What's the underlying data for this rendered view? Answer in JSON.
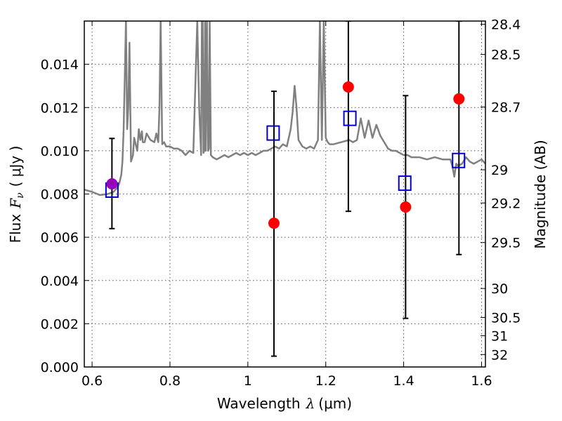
{
  "chart_data": {
    "type": "scatter",
    "title": "",
    "xlabel": {
      "text": "Wavelength",
      "symbol": "λ",
      "unit": "(μm)"
    },
    "ylabel": {
      "text": "Flux",
      "symbol": "F",
      "subscript": "ν",
      "unit": "( μJy )"
    },
    "y2label": "Magnitude (AB)",
    "xlim": [
      0.58,
      1.61
    ],
    "ylim": [
      0.0,
      0.016
    ],
    "grid": true,
    "legend": "none",
    "xticks": [
      0.6,
      0.8,
      1.0,
      1.2,
      1.4,
      1.6
    ],
    "xtick_labels": [
      "0.6",
      "0.8",
      "1",
      "1.2",
      "1.4",
      "1.6"
    ],
    "yticks": [
      0.0,
      0.002,
      0.004,
      0.006,
      0.008,
      0.01,
      0.012,
      0.014
    ],
    "ytick_labels": [
      "0.000",
      "0.002",
      "0.004",
      "0.006",
      "0.008",
      "0.010",
      "0.012",
      "0.014"
    ],
    "magnitude_ticks": [
      {
        "mag": 28.4,
        "label": "28.4"
      },
      {
        "mag": 28.5,
        "label": "28.5"
      },
      {
        "mag": 28.7,
        "label": "28.7"
      },
      {
        "mag": 29.0,
        "label": "29"
      },
      {
        "mag": 29.2,
        "label": "29.2"
      },
      {
        "mag": 29.5,
        "label": "29.5"
      },
      {
        "mag": 30.0,
        "label": "30"
      },
      {
        "mag": 30.5,
        "label": "30.5"
      },
      {
        "mag": 31.0,
        "label": "31"
      },
      {
        "mag": 32.0,
        "label": "32"
      }
    ],
    "colors": {
      "observed": "#ff0000",
      "model": "#0000cc",
      "detected": "#9900bb",
      "errorbar": "#000000",
      "spectrum": "#808080",
      "grid": "#555555"
    },
    "observed_points": [
      {
        "x": 1.067,
        "y": 0.00665,
        "yerr_low": 0.00615,
        "yerr_high": 0.0061
      },
      {
        "x": 1.258,
        "y": 0.01295,
        "yerr_low": 0.00575,
        "yerr_high": 0.00305
      },
      {
        "x": 1.405,
        "y": 0.0074,
        "yerr_low": 0.00515,
        "yerr_high": 0.00515
      },
      {
        "x": 1.542,
        "y": 0.0124,
        "yerr_low": 0.0072,
        "yerr_high": 0.0036
      }
    ],
    "detected_points": [
      {
        "x": 0.651,
        "y": 0.00847,
        "yerr_low": 0.00207,
        "yerr_high": 0.0021
      }
    ],
    "model_points": [
      {
        "x": 0.651,
        "y": 0.00818
      },
      {
        "x": 1.065,
        "y": 0.01082
      },
      {
        "x": 1.262,
        "y": 0.0115
      },
      {
        "x": 1.403,
        "y": 0.0085
      },
      {
        "x": 1.541,
        "y": 0.00955
      }
    ],
    "spectrum": {
      "x": [
        0.58,
        0.6,
        0.62,
        0.64,
        0.655,
        0.665,
        0.67,
        0.675,
        0.678,
        0.681,
        0.684,
        0.687,
        0.69,
        0.693,
        0.696,
        0.7,
        0.705,
        0.708,
        0.712,
        0.716,
        0.72,
        0.724,
        0.728,
        0.73,
        0.735,
        0.74,
        0.75,
        0.76,
        0.765,
        0.77,
        0.773,
        0.776,
        0.78,
        0.785,
        0.79,
        0.8,
        0.81,
        0.82,
        0.83,
        0.84,
        0.85,
        0.86,
        0.87,
        0.875,
        0.88,
        0.882,
        0.884,
        0.886,
        0.888,
        0.89,
        0.892,
        0.895,
        0.898,
        0.9,
        0.902,
        0.905,
        0.91,
        0.92,
        0.93,
        0.94,
        0.95,
        0.96,
        0.97,
        0.98,
        0.99,
        1.0,
        1.01,
        1.02,
        1.03,
        1.04,
        1.05,
        1.06,
        1.07,
        1.08,
        1.09,
        1.1,
        1.11,
        1.115,
        1.12,
        1.125,
        1.13,
        1.14,
        1.15,
        1.16,
        1.17,
        1.18,
        1.185,
        1.19,
        1.195,
        1.2,
        1.205,
        1.21,
        1.22,
        1.24,
        1.26,
        1.27,
        1.28,
        1.29,
        1.3,
        1.31,
        1.32,
        1.33,
        1.34,
        1.35,
        1.36,
        1.37,
        1.38,
        1.39,
        1.4,
        1.41,
        1.42,
        1.44,
        1.46,
        1.48,
        1.5,
        1.52,
        1.525,
        1.53,
        1.535,
        1.54,
        1.55,
        1.56,
        1.57,
        1.58,
        1.59,
        1.6,
        1.61
      ],
      "y": [
        0.0082,
        0.0081,
        0.00795,
        0.008,
        0.0081,
        0.0083,
        0.0085,
        0.0089,
        0.0095,
        0.011,
        0.0135,
        0.016,
        0.011,
        0.012,
        0.015,
        0.0095,
        0.0098,
        0.0106,
        0.0103,
        0.01,
        0.011,
        0.0105,
        0.0109,
        0.0104,
        0.0104,
        0.0108,
        0.0105,
        0.0104,
        0.0108,
        0.0104,
        0.012,
        0.016,
        0.0103,
        0.0104,
        0.0102,
        0.0102,
        0.0101,
        0.0101,
        0.01,
        0.0098,
        0.01,
        0.0099,
        0.016,
        0.012,
        0.0098,
        0.016,
        0.016,
        0.0099,
        0.01,
        0.016,
        0.01,
        0.016,
        0.01,
        0.0101,
        0.016,
        0.0098,
        0.0097,
        0.0096,
        0.0097,
        0.0098,
        0.0097,
        0.0098,
        0.0099,
        0.0098,
        0.0099,
        0.0098,
        0.0099,
        0.0098,
        0.0099,
        0.01,
        0.01,
        0.0101,
        0.0102,
        0.0101,
        0.0103,
        0.0102,
        0.011,
        0.0118,
        0.013,
        0.012,
        0.0105,
        0.0102,
        0.0101,
        0.0102,
        0.0101,
        0.0105,
        0.016,
        0.0105,
        0.016,
        0.0106,
        0.0104,
        0.0103,
        0.0103,
        0.0104,
        0.0105,
        0.0104,
        0.0105,
        0.0115,
        0.0106,
        0.0114,
        0.0106,
        0.0112,
        0.0107,
        0.0104,
        0.0101,
        0.01,
        0.01,
        0.0099,
        0.0098,
        0.0098,
        0.0097,
        0.0097,
        0.0096,
        0.0097,
        0.0096,
        0.0096,
        0.0093,
        0.0088,
        0.0094,
        0.0093,
        0.0094,
        0.0097,
        0.0095,
        0.0094,
        0.0095,
        0.0096,
        0.0094
      ]
    }
  }
}
